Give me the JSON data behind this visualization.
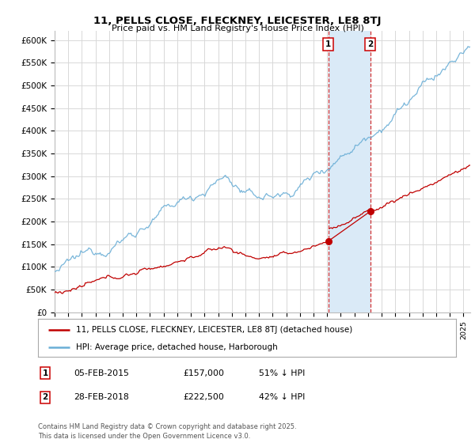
{
  "title": "11, PELLS CLOSE, FLECKNEY, LEICESTER, LE8 8TJ",
  "subtitle": "Price paid vs. HM Land Registry's House Price Index (HPI)",
  "ylim": [
    0,
    620000
  ],
  "xlim_start": 1995.0,
  "xlim_end": 2025.5,
  "hpi_color": "#6aaed6",
  "price_color": "#c00000",
  "marker1_date": 2015.09,
  "marker1_price": 157000,
  "marker2_date": 2018.16,
  "marker2_price": 222500,
  "legend_line1": "11, PELLS CLOSE, FLECKNEY, LEICESTER, LE8 8TJ (detached house)",
  "legend_line2": "HPI: Average price, detached house, Harborough",
  "table_row1": [
    "1",
    "05-FEB-2015",
    "£157,000",
    "51% ↓ HPI"
  ],
  "table_row2": [
    "2",
    "28-FEB-2018",
    "£222,500",
    "42% ↓ HPI"
  ],
  "footer": "Contains HM Land Registry data © Crown copyright and database right 2025.\nThis data is licensed under the Open Government Licence v3.0.",
  "bg_color": "#ffffff",
  "grid_color": "#d8d8d8",
  "shade_color": "#daeaf7"
}
